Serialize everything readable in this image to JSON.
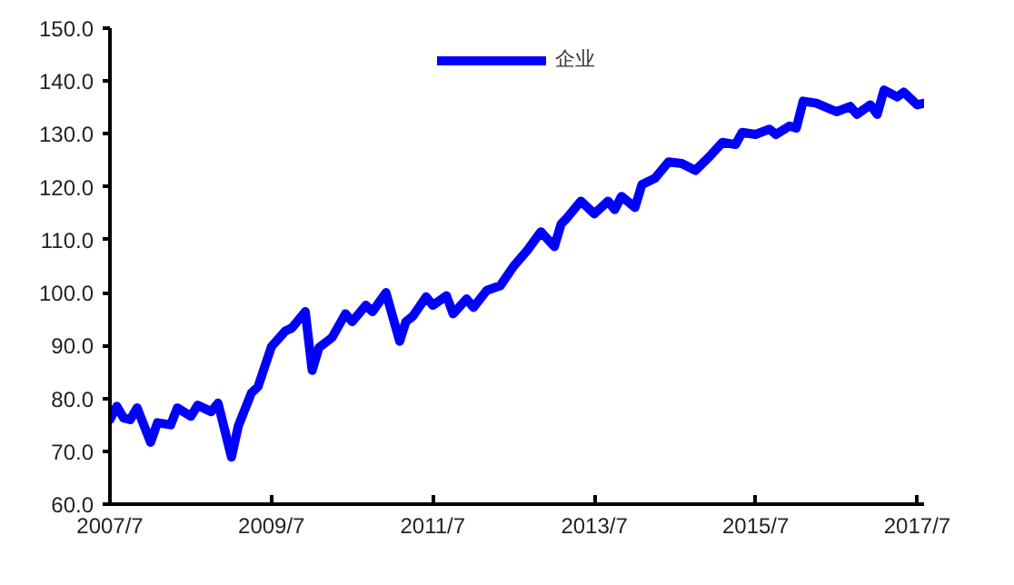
{
  "chart_data": {
    "type": "line",
    "x": [
      "2007-07",
      "2007-08",
      "2007-09",
      "2007-10",
      "2007-11",
      "2008-01",
      "2008-02",
      "2008-04",
      "2008-05",
      "2008-07",
      "2008-08",
      "2008-10",
      "2008-11",
      "2009-01",
      "2009-02",
      "2009-04",
      "2009-05",
      "2009-07",
      "2009-09",
      "2009-10",
      "2009-12",
      "2010-01",
      "2010-02",
      "2010-04",
      "2010-06",
      "2010-07",
      "2010-09",
      "2010-10",
      "2010-12",
      "2011-02",
      "2011-03",
      "2011-04",
      "2011-06",
      "2011-07",
      "2011-09",
      "2011-10",
      "2011-12",
      "2012-01",
      "2012-03",
      "2012-05",
      "2012-07",
      "2012-09",
      "2012-11",
      "2013-01",
      "2013-02",
      "2013-03",
      "2013-05",
      "2013-07",
      "2013-09",
      "2013-10",
      "2013-11",
      "2014-01",
      "2014-02",
      "2014-04",
      "2014-06",
      "2014-08",
      "2014-10",
      "2014-12",
      "2015-02",
      "2015-04",
      "2015-05",
      "2015-07",
      "2015-09",
      "2015-10",
      "2015-12",
      "2016-01",
      "2016-02",
      "2016-04",
      "2016-07",
      "2016-09",
      "2016-10",
      "2016-12",
      "2017-01",
      "2017-02",
      "2017-04",
      "2017-05",
      "2017-07",
      "2017-08"
    ],
    "series": [
      {
        "name": "企业",
        "color": "#0000ff",
        "values": [
          76.0,
          78.5,
          76.3,
          76.0,
          78.2,
          71.7,
          75.4,
          75.0,
          78.2,
          76.6,
          78.7,
          77.5,
          79.1,
          68.9,
          74.8,
          81.0,
          82.2,
          89.8,
          92.7,
          93.3,
          96.4,
          85.3,
          89.6,
          91.5,
          96.0,
          94.5,
          97.6,
          96.4,
          100.0,
          90.8,
          94.5,
          95.5,
          99.2,
          97.6,
          99.4,
          96.0,
          98.8,
          97.2,
          100.4,
          101.3,
          105.0,
          108.0,
          111.5,
          108.7,
          113.0,
          114.2,
          117.3,
          114.9,
          117.3,
          115.7,
          118.2,
          116.1,
          120.4,
          121.6,
          124.7,
          124.4,
          123.1,
          125.6,
          128.4,
          128.0,
          130.3,
          129.9,
          130.9,
          129.9,
          131.5,
          131.1,
          136.2,
          135.8,
          134.2,
          135.2,
          133.7,
          135.5,
          133.7,
          138.3,
          137.0,
          137.9,
          135.5,
          135.8
        ]
      }
    ],
    "xlim": [
      "2007-07",
      "2017-08"
    ],
    "xticks": [
      {
        "value": "2007-07",
        "label": "2007/7"
      },
      {
        "value": "2009-07",
        "label": "2009/7"
      },
      {
        "value": "2011-07",
        "label": "2011/7"
      },
      {
        "value": "2013-07",
        "label": "2013/7"
      },
      {
        "value": "2015-07",
        "label": "2015/7"
      },
      {
        "value": "2017-07",
        "label": "2017/7"
      }
    ],
    "ylim": [
      60,
      150
    ],
    "yticks": [
      {
        "value": 60,
        "label": "60.0"
      },
      {
        "value": 70,
        "label": "70.0"
      },
      {
        "value": 80,
        "label": "80.0"
      },
      {
        "value": 90,
        "label": "90.0"
      },
      {
        "value": 100,
        "label": "100.0"
      },
      {
        "value": 110,
        "label": "110.0"
      },
      {
        "value": 120,
        "label": "120.0"
      },
      {
        "value": 130,
        "label": "130.0"
      },
      {
        "value": 140,
        "label": "140.0"
      },
      {
        "value": 150,
        "label": "150.0"
      }
    ],
    "legend": "top",
    "line_style": "solid"
  }
}
